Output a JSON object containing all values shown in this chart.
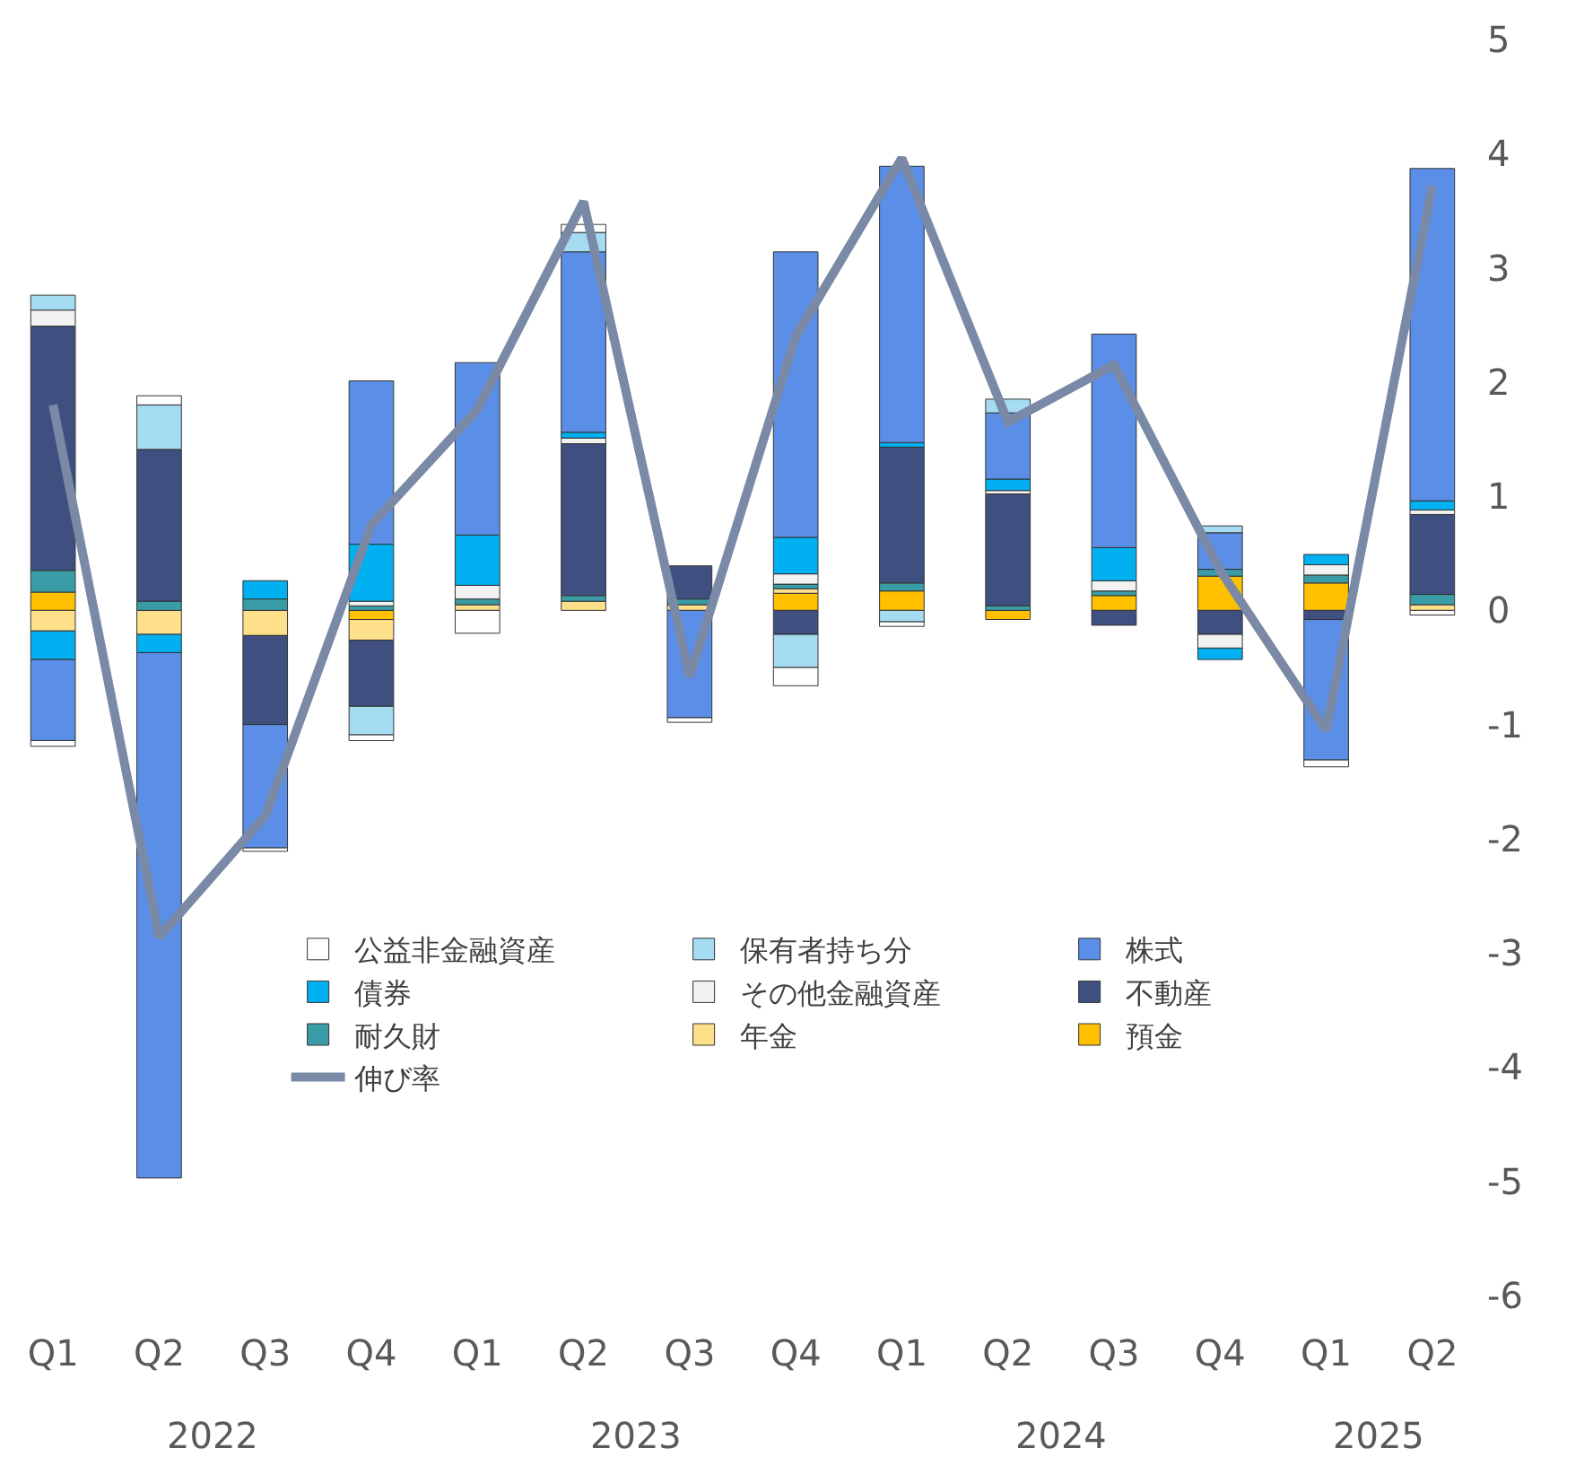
{
  "chart_data": {
    "type": "bar",
    "stacked": true,
    "categories": [
      "Q1",
      "Q2",
      "Q3",
      "Q4",
      "Q1",
      "Q2",
      "Q3",
      "Q4",
      "Q1",
      "Q2",
      "Q3",
      "Q4",
      "Q1",
      "Q2"
    ],
    "annotations": [
      "2022",
      "2023",
      "2024",
      "2025"
    ],
    "series": [
      {
        "name": "預金",
        "color": "#ffc000",
        "values": [
          0.16,
          null,
          null,
          -0.08,
          null,
          null,
          null,
          0.15,
          0.17,
          -0.08,
          0.13,
          0.3,
          0.24,
          null
        ]
      },
      {
        "name": "年金",
        "color": "#ffe08a",
        "values": [
          -0.18,
          -0.21,
          -0.22,
          -0.18,
          0.05,
          0.08,
          0.05,
          0.04,
          null,
          null,
          null,
          null,
          null,
          0.05
        ]
      },
      {
        "name": "耐久財",
        "color": "#3a9ca6",
        "values": [
          0.19,
          0.08,
          0.1,
          0.04,
          0.05,
          0.05,
          0.05,
          0.04,
          0.07,
          0.04,
          0.04,
          0.06,
          0.07,
          0.09
        ]
      },
      {
        "name": "不動産",
        "color": "#3f4f7f",
        "values": [
          2.14,
          1.33,
          -0.78,
          -0.58,
          null,
          1.33,
          0.29,
          -0.21,
          1.19,
          0.98,
          -0.13,
          -0.21,
          -0.08,
          0.7
        ]
      },
      {
        "name": "その他金融資産",
        "color": "#f2f2f2",
        "values": [
          0.14,
          null,
          null,
          0.04,
          0.12,
          0.05,
          null,
          0.09,
          null,
          0.03,
          0.09,
          -0.12,
          0.09,
          0.04
        ]
      },
      {
        "name": "債券",
        "color": "#00b0f0",
        "values": [
          -0.25,
          -0.16,
          0.16,
          0.5,
          0.44,
          0.05,
          null,
          0.32,
          0.04,
          0.1,
          0.29,
          -0.1,
          0.09,
          0.08
        ]
      },
      {
        "name": "株式",
        "color": "#5b8ee6",
        "values": [
          -0.71,
          -4.6,
          -1.08,
          1.43,
          1.51,
          1.58,
          -0.94,
          2.5,
          2.42,
          0.58,
          1.87,
          0.32,
          -1.23,
          2.91
        ]
      },
      {
        "name": "保有者持ち分",
        "color": "#a6dcf2",
        "values": [
          0.13,
          0.39,
          null,
          -0.25,
          null,
          0.17,
          null,
          -0.29,
          -0.1,
          0.12,
          null,
          0.06,
          null,
          null
        ]
      },
      {
        "name": "公益非金融資産",
        "color": "#ffffff",
        "values": [
          -0.05,
          0.08,
          -0.03,
          -0.05,
          -0.2,
          0.07,
          -0.04,
          -0.16,
          -0.04,
          null,
          null,
          null,
          -0.06,
          -0.04
        ]
      },
      {
        "name": "伸び率",
        "type": "line",
        "color": "#7a89a5",
        "values": [
          1.8,
          -2.86,
          -1.8,
          0.75,
          1.76,
          3.58,
          -0.58,
          2.4,
          3.96,
          1.65,
          2.15,
          0.35,
          -1.05,
          3.72
        ]
      }
    ],
    "ylim": [
      -6,
      5
    ],
    "yticks": [
      -6,
      -5,
      -4,
      -3,
      -2,
      -1,
      0,
      1,
      2,
      3,
      4,
      5
    ],
    "legend": "bottom",
    "marker": "none",
    "line_style": "solid"
  }
}
